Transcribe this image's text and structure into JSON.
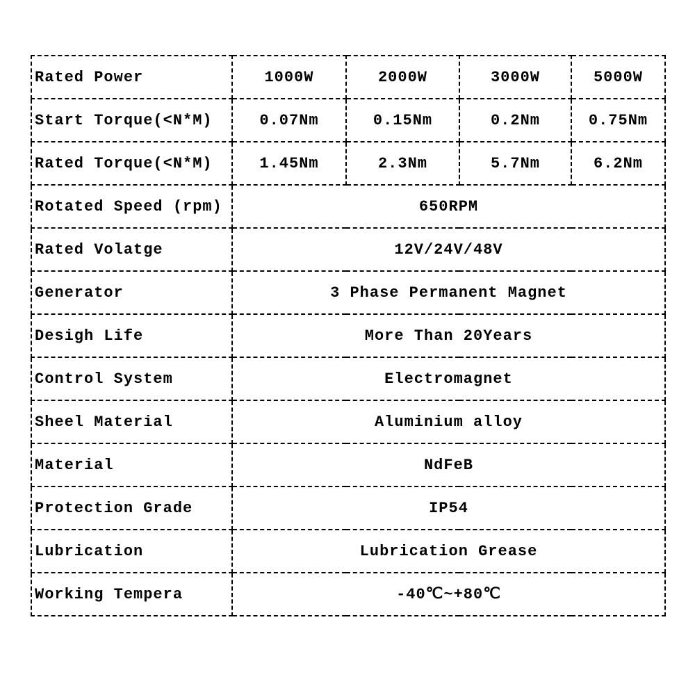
{
  "power_rows": [
    {
      "label": "Rated Power",
      "values": [
        "1000W",
        "2000W",
        "3000W",
        "5000W"
      ]
    },
    {
      "label": "Start Torque(<N*M)",
      "values": [
        "0.07Nm",
        "0.15Nm",
        "0.2Nm",
        "0.75Nm"
      ]
    },
    {
      "label": "Rated Torque(<N*M)",
      "values": [
        "1.45Nm",
        "2.3Nm",
        "5.7Nm",
        "6.2Nm"
      ]
    }
  ],
  "spec_rows": [
    {
      "label": "Rotated Speed (rpm)",
      "value": "650RPM"
    },
    {
      "label": "Rated Volatge",
      "value": "12V/24V/48V"
    },
    {
      "label": "Generator",
      "value": "3 Phase Permanent Magnet"
    },
    {
      "label": "Desigh Life",
      "value": "More Than 20Years"
    },
    {
      "label": "Control System",
      "value": "Electromagnet"
    },
    {
      "label": "Sheel Material",
      "value": "Aluminium alloy"
    },
    {
      "label": "Material",
      "value": "NdFeB"
    },
    {
      "label": "Protection Grade",
      "value": "IP54"
    },
    {
      "label": "Lubrication",
      "value": "Lubrication Grease"
    },
    {
      "label": "Working Tempera",
      "value": "-40℃~+80℃"
    }
  ]
}
